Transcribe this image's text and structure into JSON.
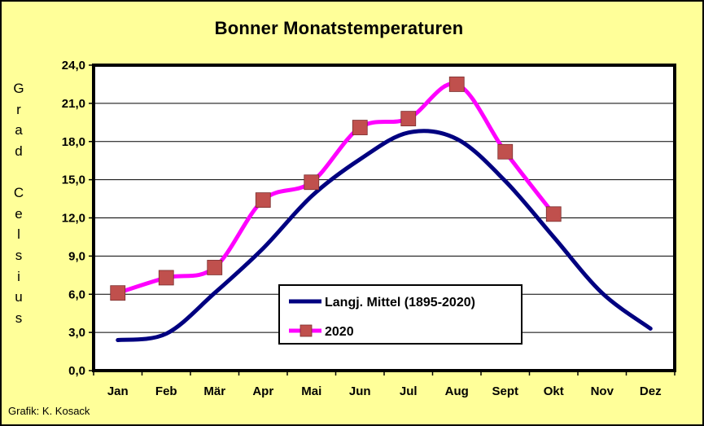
{
  "chart_data": {
    "type": "line",
    "title": "Bonner Monatstemperaturen",
    "ylabel": "Grad Celsius",
    "xlabel": "",
    "categories": [
      "Jan",
      "Feb",
      "Mär",
      "Apr",
      "Mai",
      "Jun",
      "Jul",
      "Aug",
      "Sept",
      "Okt",
      "Nov",
      "Dez"
    ],
    "ylim": [
      0,
      24
    ],
    "yticks": [
      "0,0",
      "3,0",
      "6,0",
      "9,0",
      "12,0",
      "15,0",
      "18,0",
      "21,0",
      "24,0"
    ],
    "grid": true,
    "legend_position": "center-bottom",
    "series": [
      {
        "name": "Langj. Mittel (1895-2020)",
        "color": "#000080",
        "marker": "none",
        "values": [
          2.4,
          2.9,
          6.1,
          9.6,
          13.7,
          16.6,
          18.7,
          18.2,
          14.9,
          10.5,
          6.1,
          3.3
        ]
      },
      {
        "name": "2020",
        "color": "#ff00ff",
        "marker": "square",
        "marker_color": "#c0504d",
        "values": [
          6.1,
          7.3,
          8.1,
          13.4,
          14.8,
          19.1,
          19.8,
          22.5,
          17.2,
          12.3,
          null,
          null
        ]
      }
    ]
  },
  "credit": "Grafik:  K. Kosack",
  "colors": {
    "background": "#ffff99",
    "plot_area": "#ffffff",
    "axis": "#000000"
  }
}
